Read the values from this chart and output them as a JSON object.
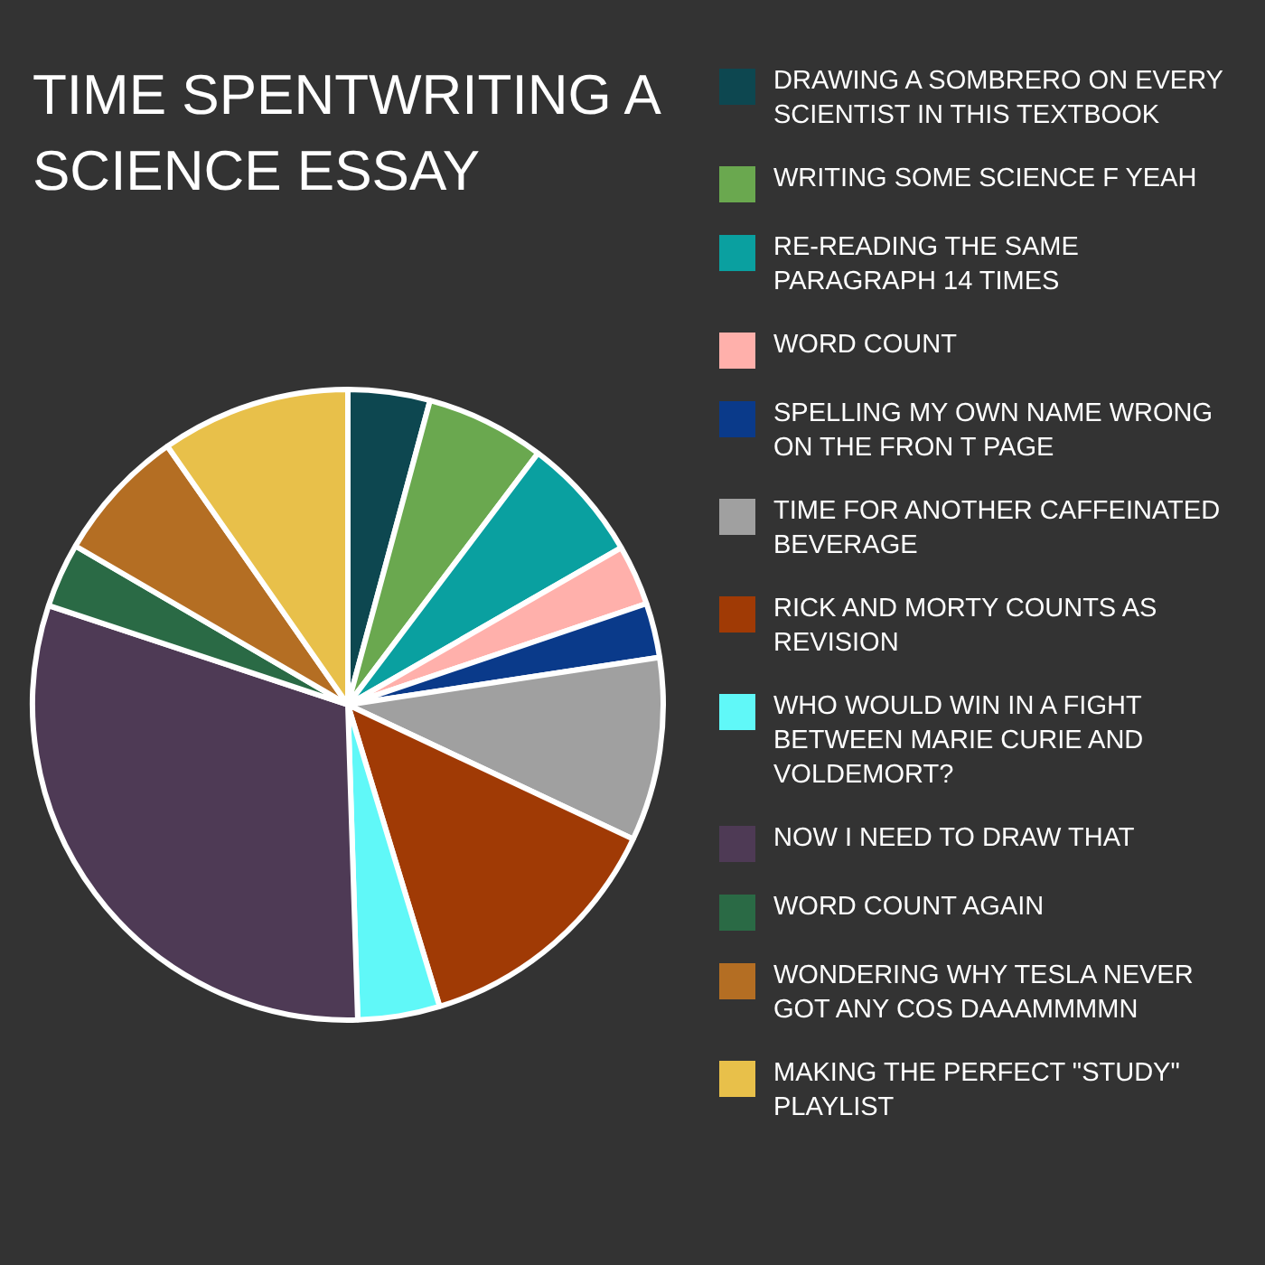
{
  "chart_data": {
    "type": "pie",
    "title": "TIME SPENTWRITING A SCIENCE ESSAY",
    "legend": "right",
    "categories": [
      "DRAWING A SOMBRERO ON EVERY SCIENTIST IN THIS TEXTBOOK",
      "WRITING SOME SCIENCE F YEAH",
      "RE-READING THE SAME PARAGRAPH 14 TIMES",
      "WORD COUNT",
      "SPELLING MY OWN NAME WRONG ON THE FRON T PAGE",
      "TIME FOR ANOTHER CAFFEINATED BEVERAGE",
      "RICK AND MORTY COUNTS AS REVISION",
      "WHO WOULD WIN IN A FIGHT BETWEEN MARIE CURIE AND VOLDEMORT?",
      "NOW I NEED TO DRAW THAT",
      "WORD COUNT AGAIN",
      "WONDERING WHY TESLA NEVER GOT ANY COS DAAAMMMMN",
      "MAKING THE PERFECT \"STUDY\" PLAYLIST"
    ],
    "values": [
      4.2,
      6.1,
      6.4,
      3.1,
      2.8,
      9.4,
      13.3,
      4.2,
      30.6,
      3.3,
      6.9,
      9.7
    ],
    "colors": [
      "#0d4750",
      "#6aa84f",
      "#0aa0a0",
      "#ffb0ab",
      "#0a3a8a",
      "#a0a0a0",
      "#a03a05",
      "#60f8f8",
      "#4e3a55",
      "#2a6a45",
      "#b46e23",
      "#e8c04a"
    ]
  }
}
